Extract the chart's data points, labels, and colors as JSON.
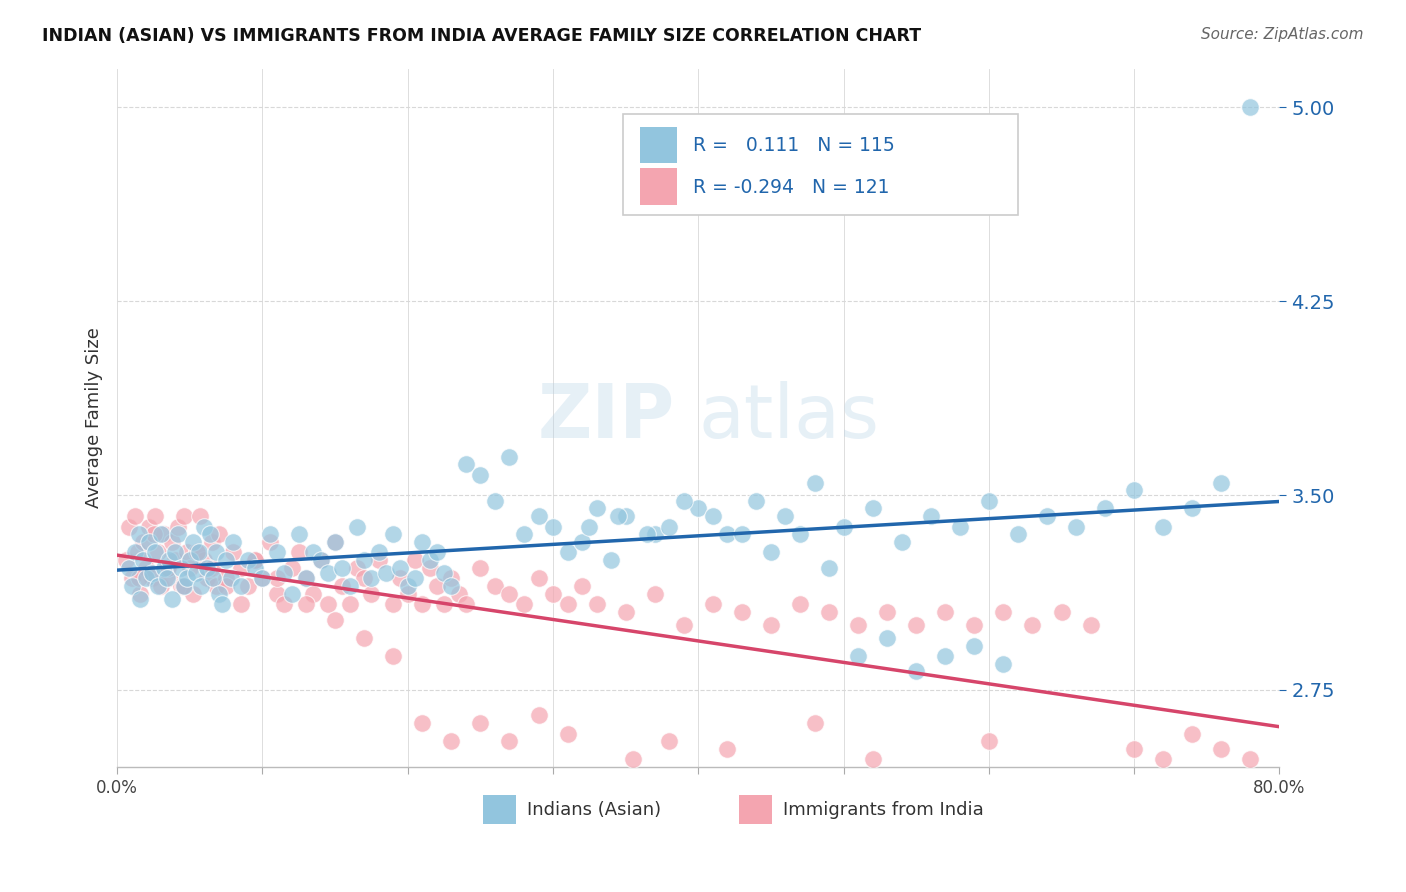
{
  "title": "INDIAN (ASIAN) VS IMMIGRANTS FROM INDIA AVERAGE FAMILY SIZE CORRELATION CHART",
  "source_text": "Source: ZipAtlas.com",
  "ylabel": "Average Family Size",
  "xlim": [
    0.0,
    0.8
  ],
  "ylim": [
    2.45,
    5.15
  ],
  "yticks": [
    2.75,
    3.5,
    4.25,
    5.0
  ],
  "xticks": [
    0.0,
    0.1,
    0.2,
    0.3,
    0.4,
    0.5,
    0.6,
    0.7,
    0.8
  ],
  "xticklabels": [
    "0.0%",
    "",
    "",
    "",
    "",
    "",
    "",
    "",
    "80.0%"
  ],
  "background_color": "#ffffff",
  "grid_color": "#d8d8d8",
  "blue_color": "#92c5de",
  "blue_line_color": "#2166ac",
  "pink_color": "#f4a5b0",
  "pink_line_color": "#d6456a",
  "r_blue": "0.111",
  "n_blue": "115",
  "r_pink": "-0.294",
  "n_pink": "121",
  "legend_label_blue": "Indians (Asian)",
  "legend_label_pink": "Immigrants from India",
  "watermark_zip": "ZIP",
  "watermark_atlas": "atlas",
  "blue_scatter_x": [
    0.008,
    0.01,
    0.012,
    0.015,
    0.016,
    0.018,
    0.02,
    0.022,
    0.024,
    0.026,
    0.028,
    0.03,
    0.032,
    0.034,
    0.036,
    0.038,
    0.04,
    0.042,
    0.044,
    0.046,
    0.048,
    0.05,
    0.052,
    0.054,
    0.056,
    0.058,
    0.06,
    0.062,
    0.064,
    0.066,
    0.068,
    0.07,
    0.072,
    0.075,
    0.078,
    0.08,
    0.085,
    0.09,
    0.095,
    0.1,
    0.105,
    0.11,
    0.115,
    0.12,
    0.125,
    0.13,
    0.135,
    0.14,
    0.145,
    0.15,
    0.155,
    0.16,
    0.165,
    0.17,
    0.175,
    0.18,
    0.185,
    0.19,
    0.195,
    0.2,
    0.205,
    0.21,
    0.215,
    0.22,
    0.225,
    0.23,
    0.24,
    0.25,
    0.26,
    0.27,
    0.28,
    0.29,
    0.3,
    0.31,
    0.32,
    0.33,
    0.34,
    0.35,
    0.37,
    0.38,
    0.4,
    0.42,
    0.44,
    0.46,
    0.48,
    0.5,
    0.52,
    0.54,
    0.56,
    0.58,
    0.6,
    0.62,
    0.64,
    0.66,
    0.68,
    0.7,
    0.72,
    0.74,
    0.76,
    0.325,
    0.345,
    0.365,
    0.39,
    0.41,
    0.43,
    0.45,
    0.47,
    0.49,
    0.51,
    0.53,
    0.55,
    0.57,
    0.59,
    0.61,
    0.78
  ],
  "blue_scatter_y": [
    3.22,
    3.15,
    3.28,
    3.35,
    3.1,
    3.25,
    3.18,
    3.32,
    3.2,
    3.28,
    3.15,
    3.35,
    3.22,
    3.18,
    3.25,
    3.1,
    3.28,
    3.35,
    3.22,
    3.15,
    3.18,
    3.25,
    3.32,
    3.2,
    3.28,
    3.15,
    3.38,
    3.22,
    3.35,
    3.18,
    3.28,
    3.12,
    3.08,
    3.25,
    3.18,
    3.32,
    3.15,
    3.25,
    3.22,
    3.18,
    3.35,
    3.28,
    3.2,
    3.12,
    3.35,
    3.18,
    3.28,
    3.25,
    3.2,
    3.32,
    3.22,
    3.15,
    3.38,
    3.25,
    3.18,
    3.28,
    3.2,
    3.35,
    3.22,
    3.15,
    3.18,
    3.32,
    3.25,
    3.28,
    3.2,
    3.15,
    3.62,
    3.58,
    3.48,
    3.65,
    3.35,
    3.42,
    3.38,
    3.28,
    3.32,
    3.45,
    3.25,
    3.42,
    3.35,
    3.38,
    3.45,
    3.35,
    3.48,
    3.42,
    3.55,
    3.38,
    3.45,
    3.32,
    3.42,
    3.38,
    3.48,
    3.35,
    3.42,
    3.38,
    3.45,
    3.52,
    3.38,
    3.45,
    3.55,
    3.38,
    3.42,
    3.35,
    3.48,
    3.42,
    3.35,
    3.28,
    3.35,
    3.22,
    2.88,
    2.95,
    2.82,
    2.88,
    2.92,
    2.85,
    5.0
  ],
  "pink_scatter_x": [
    0.006,
    0.008,
    0.01,
    0.012,
    0.014,
    0.016,
    0.018,
    0.02,
    0.022,
    0.024,
    0.026,
    0.028,
    0.03,
    0.032,
    0.034,
    0.036,
    0.038,
    0.04,
    0.042,
    0.044,
    0.046,
    0.048,
    0.05,
    0.052,
    0.055,
    0.057,
    0.06,
    0.062,
    0.065,
    0.068,
    0.07,
    0.075,
    0.08,
    0.085,
    0.09,
    0.095,
    0.1,
    0.105,
    0.11,
    0.115,
    0.12,
    0.125,
    0.13,
    0.135,
    0.14,
    0.145,
    0.15,
    0.155,
    0.16,
    0.165,
    0.17,
    0.175,
    0.18,
    0.19,
    0.195,
    0.2,
    0.205,
    0.21,
    0.215,
    0.22,
    0.225,
    0.23,
    0.235,
    0.24,
    0.25,
    0.26,
    0.27,
    0.28,
    0.29,
    0.3,
    0.31,
    0.32,
    0.33,
    0.35,
    0.37,
    0.39,
    0.41,
    0.43,
    0.45,
    0.47,
    0.49,
    0.51,
    0.53,
    0.55,
    0.57,
    0.59,
    0.61,
    0.63,
    0.65,
    0.67,
    0.015,
    0.025,
    0.035,
    0.045,
    0.055,
    0.065,
    0.075,
    0.085,
    0.095,
    0.11,
    0.13,
    0.15,
    0.17,
    0.19,
    0.21,
    0.23,
    0.25,
    0.27,
    0.29,
    0.31,
    0.355,
    0.38,
    0.42,
    0.48,
    0.52,
    0.6,
    0.7,
    0.72,
    0.74,
    0.76,
    0.78
  ],
  "pink_scatter_y": [
    3.25,
    3.38,
    3.18,
    3.42,
    3.28,
    3.12,
    3.32,
    3.22,
    3.38,
    3.18,
    3.42,
    3.28,
    3.15,
    3.35,
    3.22,
    3.18,
    3.32,
    3.25,
    3.38,
    3.15,
    3.42,
    3.28,
    3.22,
    3.12,
    3.28,
    3.42,
    3.25,
    3.18,
    3.32,
    3.15,
    3.35,
    3.18,
    3.28,
    3.22,
    3.15,
    3.25,
    3.18,
    3.32,
    3.12,
    3.08,
    3.22,
    3.28,
    3.18,
    3.12,
    3.25,
    3.08,
    3.32,
    3.15,
    3.08,
    3.22,
    3.18,
    3.12,
    3.25,
    3.08,
    3.18,
    3.12,
    3.25,
    3.08,
    3.22,
    3.15,
    3.08,
    3.18,
    3.12,
    3.08,
    3.22,
    3.15,
    3.12,
    3.08,
    3.18,
    3.12,
    3.08,
    3.15,
    3.08,
    3.05,
    3.12,
    3.0,
    3.08,
    3.05,
    3.0,
    3.08,
    3.05,
    3.0,
    3.05,
    3.0,
    3.05,
    3.0,
    3.05,
    3.0,
    3.05,
    3.0,
    3.18,
    3.35,
    3.22,
    3.15,
    3.28,
    3.22,
    3.15,
    3.08,
    3.25,
    3.18,
    3.08,
    3.02,
    2.95,
    2.88,
    2.62,
    2.55,
    2.62,
    2.55,
    2.65,
    2.58,
    2.48,
    2.55,
    2.52,
    2.62,
    2.48,
    2.55,
    2.52,
    2.48,
    2.58,
    2.52,
    2.48
  ]
}
